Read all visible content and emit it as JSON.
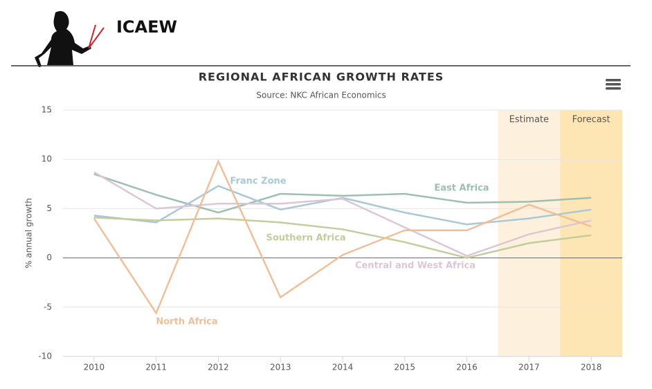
{
  "header": {
    "brand": "ICAEW"
  },
  "chart_data": {
    "type": "line",
    "title": "REGIONAL AFRICAN GROWTH RATES",
    "subtitle": "Source: NKC African Economics",
    "y_axis_label": "% annual growth",
    "categories": [
      "2010",
      "2011",
      "2012",
      "2013",
      "2014",
      "2015",
      "2016",
      "2017",
      "2018"
    ],
    "ylim": [
      -10,
      15
    ],
    "yticks": [
      -10,
      -5,
      0,
      5,
      10,
      15
    ],
    "grid": true,
    "plot_bands": [
      {
        "label": "Estimate",
        "category": "2017",
        "color": "#fdf0dc"
      },
      {
        "label": "Forecast",
        "category": "2018",
        "color": "#fde6b4"
      }
    ],
    "series": [
      {
        "name": "East Africa",
        "color": "#9dbfb0",
        "values": [
          8.5,
          6.4,
          4.6,
          6.5,
          6.3,
          6.5,
          5.6,
          5.7,
          6.1
        ]
      },
      {
        "name": "Franc Zone",
        "color": "#a9c8d8",
        "values": [
          4.3,
          3.6,
          7.3,
          4.9,
          6.1,
          4.6,
          3.4,
          4.0,
          4.9
        ]
      },
      {
        "name": "Southern Africa",
        "color": "#c5cc9b",
        "values": [
          4.1,
          3.8,
          4.0,
          3.6,
          2.9,
          1.6,
          0.0,
          1.5,
          2.3
        ]
      },
      {
        "name": "Central and West Africa",
        "color": "#dcc6d6",
        "values": [
          8.7,
          5.0,
          5.5,
          5.5,
          6.0,
          3.1,
          0.2,
          2.4,
          3.8
        ]
      },
      {
        "name": "North Africa",
        "color": "#f0bf9a",
        "values": [
          4.0,
          -5.6,
          9.8,
          -4.0,
          0.3,
          2.8,
          2.8,
          5.4,
          3.2
        ]
      }
    ]
  }
}
